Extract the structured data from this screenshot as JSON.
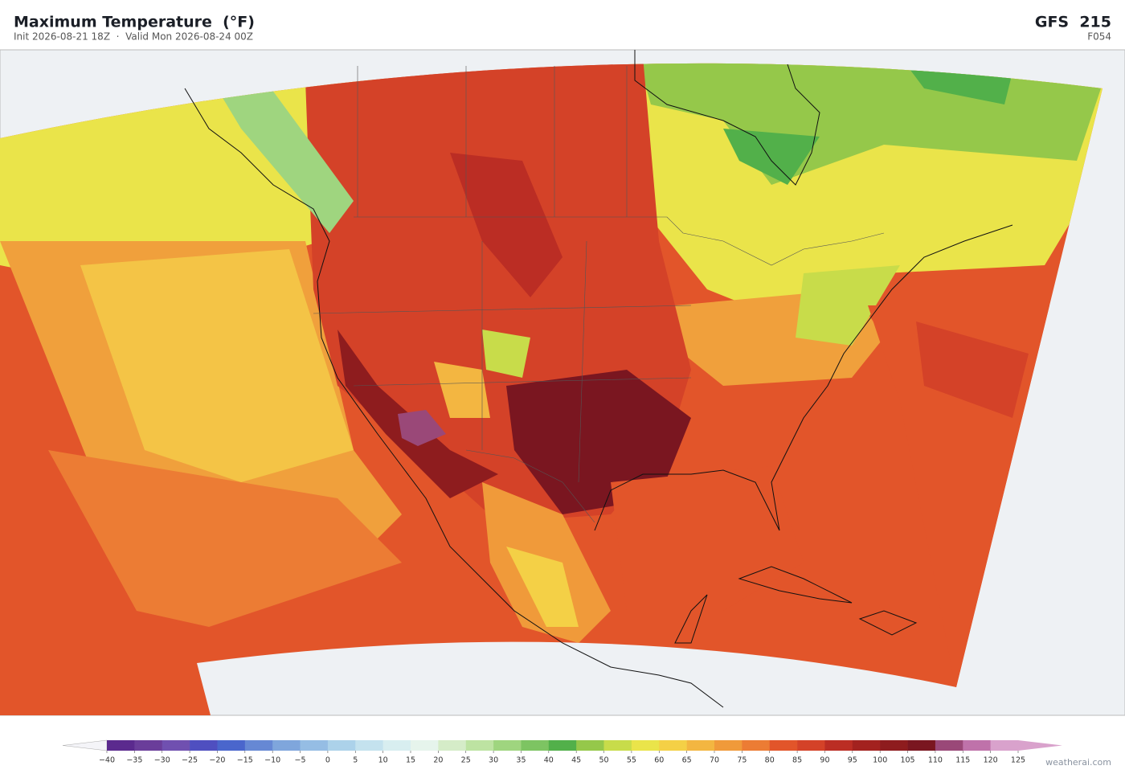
{
  "header": {
    "title": "Maximum Temperature  (°F)",
    "subtitle": "Init 2026-08-21 18Z  ·  Valid Mon 2026-08-24 00Z",
    "model": "GFS  215",
    "forecast_hour": "F054"
  },
  "colorbar": {
    "ticks": [
      {
        "value": -40,
        "label": "−40"
      },
      {
        "value": -35,
        "label": "−35"
      },
      {
        "value": -30,
        "label": "−30"
      },
      {
        "value": -25,
        "label": "−25"
      },
      {
        "value": -20,
        "label": "−20"
      },
      {
        "value": -15,
        "label": "−15"
      },
      {
        "value": -10,
        "label": "−10"
      },
      {
        "value": -5,
        "label": "−5"
      },
      0,
      5,
      10,
      15,
      20,
      25,
      30,
      35,
      40,
      45,
      50,
      55,
      60,
      65,
      70,
      75,
      80,
      85,
      90,
      95,
      100,
      105,
      110,
      115,
      120,
      125
    ],
    "colors": [
      "#5b2a8e",
      "#6a3d9a",
      "#7050b0",
      "#4f4fc0",
      "#4a66cc",
      "#6688d4",
      "#7fa6dc",
      "#95bde4",
      "#acd2ea",
      "#c4e2ee",
      "#d8eef0",
      "#e6f4ec",
      "#d5ecc8",
      "#bde3a2",
      "#9fd57f",
      "#7dc462",
      "#52b04a",
      "#95c84a",
      "#c8dc4a",
      "#eae44a",
      "#f4d046",
      "#f3b641",
      "#f09a3a",
      "#ec7c34",
      "#e2552a",
      "#d44228",
      "#bb2d24",
      "#a3221f",
      "#8e1c1e",
      "#7a1620",
      "#9a4878",
      "#bf72aa",
      "#d9a2cc"
    ],
    "under_color": "#f4f4f8",
    "over_color": "#d9a2cc"
  },
  "footer": {
    "credit": "weatherai.com"
  }
}
